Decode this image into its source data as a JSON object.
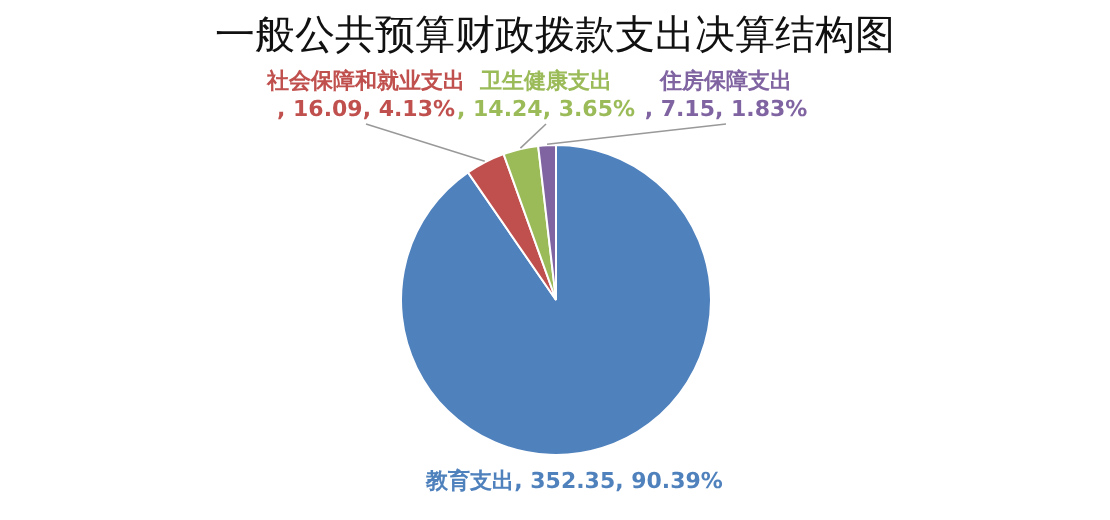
{
  "chart_data": {
    "type": "pie",
    "title": "一般公共预算财政拨款支出决算结构图",
    "categories": [
      "教育支出",
      "社会保障和就业支出",
      "卫生健康支出",
      "住房保障支出"
    ],
    "values": [
      352.35,
      16.09,
      14.24,
      7.15
    ],
    "value_labels": [
      ", 352.35, 90.39%",
      ", 16.09, 4.13%",
      ", 14.24, 3.65%",
      ", 7.15, 1.83%"
    ],
    "colors": [
      "#4f81bd",
      "#c0504d",
      "#9bbb59",
      "#8064a2"
    ],
    "legend": false
  }
}
